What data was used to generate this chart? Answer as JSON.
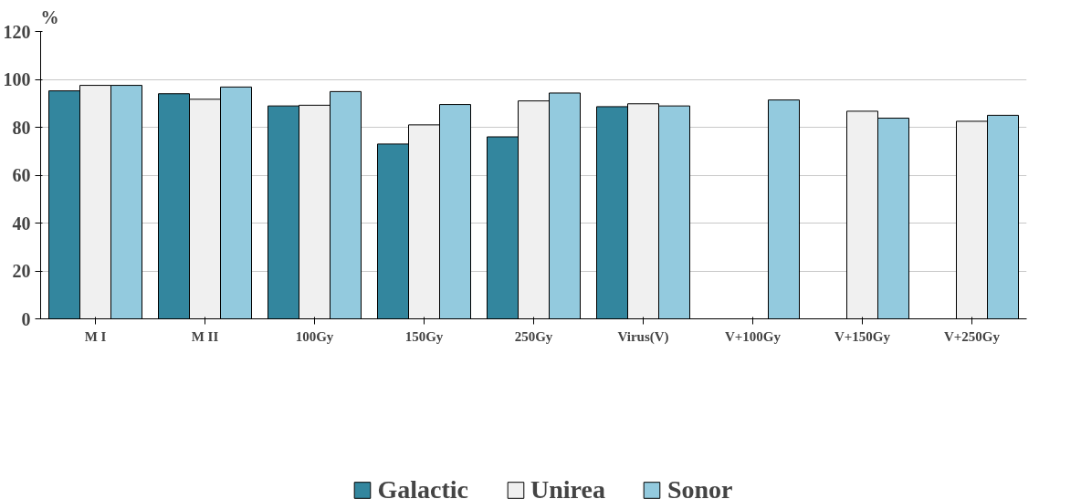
{
  "chart_data": {
    "type": "bar",
    "ylabel": "%",
    "categories": [
      "M I",
      "M II",
      "100Gy",
      "150Gy",
      "250Gy",
      "Virus(V)",
      "V+100Gy",
      "V+150Gy",
      "V+250Gy"
    ],
    "series": [
      {
        "name": "Galactic",
        "color": "#33869e",
        "values": [
          95.2,
          94,
          88.9,
          73,
          76,
          88.6,
          null,
          null,
          null
        ]
      },
      {
        "name": "Unirea",
        "color": "#f0f0f0",
        "values": [
          97.5,
          91.7,
          89.2,
          81,
          91,
          89.8,
          null,
          86.7,
          82.5
        ]
      },
      {
        "name": "Sonor",
        "color": "#93cade",
        "values": [
          97.5,
          96.8,
          94.9,
          89.5,
          94.3,
          88.9,
          91.4,
          83.8,
          85
        ]
      }
    ],
    "ylim": [
      0,
      120
    ],
    "yticks": [
      0,
      20,
      40,
      60,
      80,
      100,
      120
    ],
    "grid": "y",
    "legend": "bottom"
  }
}
